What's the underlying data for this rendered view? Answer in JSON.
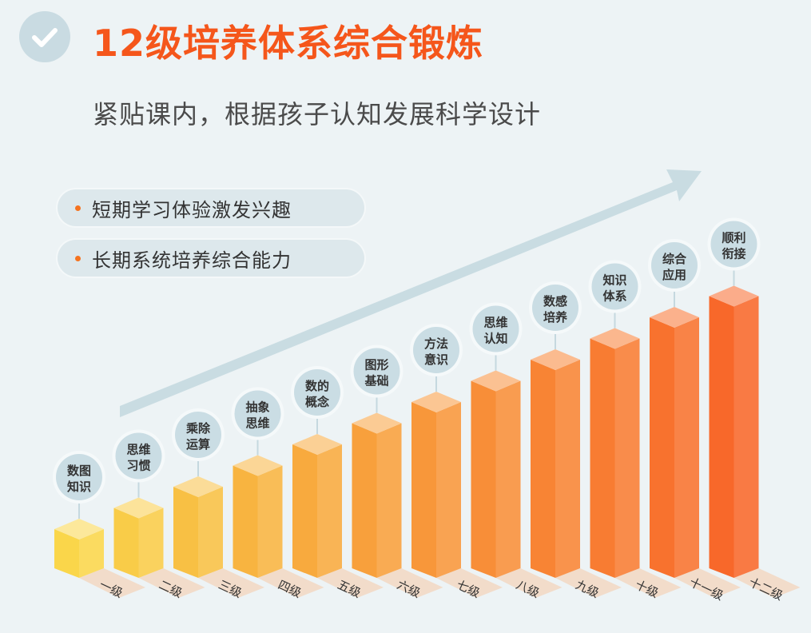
{
  "header": {
    "title": "12级培养体系综合锻炼",
    "subtitle": "紧贴课内，根据孩子认知发展科学设计",
    "icon": "check-icon"
  },
  "points": [
    {
      "text": "短期学习体验激发兴趣"
    },
    {
      "text": "长期系统培养综合能力"
    }
  ],
  "colors": {
    "title": "#f5561b",
    "accent_dot": "#f5731f",
    "arrow": "#c9dce2",
    "background": "#edf3f5"
  },
  "levels": [
    {
      "level": "一级",
      "line1": "数图",
      "line2": "知识",
      "color": "#fad64a"
    },
    {
      "level": "二级",
      "line1": "思维",
      "line2": "习惯",
      "color": "#f9cc48"
    },
    {
      "level": "三级",
      "line1": "乘除",
      "line2": "运算",
      "color": "#f8c044"
    },
    {
      "level": "四级",
      "line1": "抽象",
      "line2": "思维",
      "color": "#f8b440"
    },
    {
      "level": "五级",
      "line1": "数的",
      "line2": "概念",
      "color": "#f8aa3e"
    },
    {
      "level": "六级",
      "line1": "图形",
      "line2": "基础",
      "color": "#f8a03c"
    },
    {
      "level": "七级",
      "line1": "方法",
      "line2": "意识",
      "color": "#f8973a"
    },
    {
      "level": "八级",
      "line1": "思维",
      "line2": "认知",
      "color": "#f88e38"
    },
    {
      "level": "九级",
      "line1": "数感",
      "line2": "培养",
      "color": "#f88434"
    },
    {
      "level": "十级",
      "line1": "知识",
      "line2": "体系",
      "color": "#f87c32"
    },
    {
      "level": "十一级",
      "line1": "综合",
      "line2": "应用",
      "color": "#f8722e"
    },
    {
      "level": "十二级",
      "line1": "顺利",
      "line2": "衔接",
      "color": "#f8682a"
    }
  ]
}
